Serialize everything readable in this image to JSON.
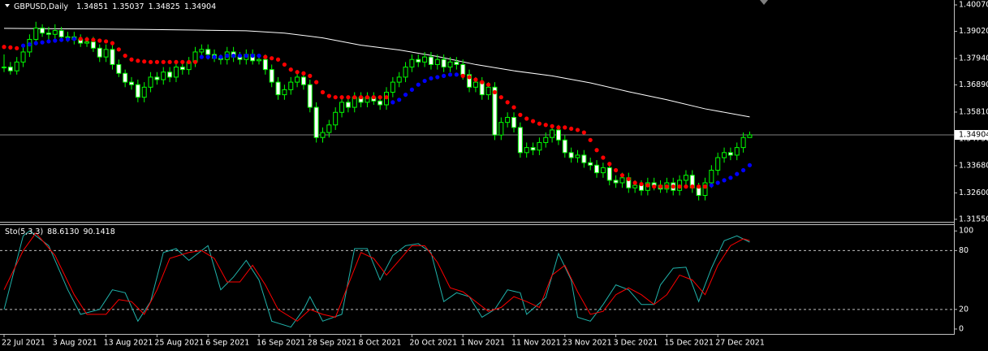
{
  "chart_data": [
    {
      "type": "candlestick",
      "title": "GBPUSD,Daily",
      "ohlc_labels": [
        "1.34851",
        "1.35037",
        "1.34825",
        "1.34904"
      ],
      "color": "#00ff00",
      "categories": [
        "22 Jul 2021",
        null,
        null,
        null,
        null,
        null,
        null,
        null,
        "3 Aug 2021",
        null,
        null,
        null,
        null,
        null,
        null,
        null,
        "13 Aug 2021",
        null,
        null,
        null,
        null,
        null,
        null,
        null,
        "25 Aug 2021",
        null,
        null,
        null,
        null,
        null,
        null,
        null,
        "6 Sep 2021",
        null,
        null,
        null,
        null,
        null,
        null,
        null,
        "16 Sep 2021",
        null,
        null,
        null,
        null,
        null,
        null,
        null,
        "28 Sep 2021",
        null,
        null,
        null,
        null,
        null,
        null,
        null,
        "8 Oct 2021",
        null,
        null,
        null,
        null,
        null,
        null,
        null,
        "20 Oct 2021",
        null,
        null,
        null,
        null,
        null,
        null,
        null,
        "1 Nov 2021",
        null,
        null,
        null,
        null,
        null,
        null,
        null,
        "11 Nov 2021",
        null,
        null,
        null,
        null,
        null,
        null,
        null,
        "23 Nov 2021",
        null,
        null,
        null,
        null,
        null,
        null,
        null,
        "3 Dec 2021",
        null,
        null,
        null,
        null,
        null,
        null,
        null,
        "15 Dec 2021",
        null,
        null,
        null,
        null,
        null,
        null,
        null,
        "27 Dec 2021",
        null,
        null,
        null,
        null,
        null
      ],
      "close": [
        1.376,
        1.3745,
        1.378,
        1.382,
        1.387,
        1.3915,
        1.3895,
        1.389,
        1.3905,
        1.388,
        1.388,
        1.387,
        1.3855,
        1.386,
        1.3835,
        1.38,
        1.383,
        1.377,
        1.3735,
        1.37,
        1.369,
        1.364,
        1.368,
        1.372,
        1.371,
        1.374,
        1.372,
        1.376,
        1.375,
        1.378,
        1.382,
        1.383,
        1.381,
        1.3795,
        1.379,
        1.382,
        1.38,
        1.379,
        1.381,
        1.3785,
        1.379,
        1.375,
        1.37,
        1.365,
        1.367,
        1.37,
        1.372,
        1.369,
        1.36,
        1.348,
        1.35,
        1.353,
        1.358,
        1.362,
        1.36,
        1.364,
        1.362,
        1.364,
        1.3625,
        1.361,
        1.366,
        1.37,
        1.372,
        1.376,
        1.379,
        1.378,
        1.38,
        1.377,
        1.379,
        1.376,
        1.378,
        1.377,
        1.373,
        1.368,
        1.37,
        1.365,
        1.368,
        1.349,
        1.354,
        1.356,
        1.352,
        1.342,
        1.344,
        1.343,
        1.346,
        1.348,
        1.351,
        1.347,
        1.342,
        1.34,
        1.341,
        1.338,
        1.337,
        1.334,
        1.336,
        1.331,
        1.33,
        1.332,
        1.328,
        1.329,
        1.327,
        1.33,
        1.329,
        1.3275,
        1.33,
        1.327,
        1.331,
        1.333,
        1.328,
        1.325,
        1.33,
        1.335,
        1.34,
        1.342,
        1.341,
        1.344,
        1.348,
        1.34904
      ],
      "high": [
        1.381,
        1.378,
        1.38,
        1.384,
        1.389,
        1.394,
        1.393,
        1.392,
        1.393,
        1.392,
        1.39,
        1.39,
        1.389,
        1.388,
        1.388,
        1.385,
        1.385,
        1.385,
        1.379,
        1.375,
        1.372,
        1.371,
        1.37,
        1.374,
        1.374,
        1.376,
        1.376,
        1.378,
        1.378,
        1.38,
        1.384,
        1.385,
        1.385,
        1.383,
        1.381,
        1.384,
        1.384,
        1.382,
        1.383,
        1.383,
        1.381,
        1.381,
        1.377,
        1.372,
        1.369,
        1.372,
        1.374,
        1.374,
        1.371,
        1.362,
        1.352,
        1.355,
        1.36,
        1.364,
        1.364,
        1.366,
        1.366,
        1.366,
        1.366,
        1.364,
        1.368,
        1.372,
        1.374,
        1.378,
        1.381,
        1.381,
        1.382,
        1.382,
        1.381,
        1.381,
        1.38,
        1.38,
        1.379,
        1.375,
        1.372,
        1.372,
        1.37,
        1.37,
        1.356,
        1.358,
        1.358,
        1.354,
        1.346,
        1.346,
        1.348,
        1.35,
        1.353,
        1.353,
        1.349,
        1.344,
        1.343,
        1.343,
        1.34,
        1.339,
        1.338,
        1.338,
        1.333,
        1.334,
        1.334,
        1.331,
        1.331,
        1.332,
        1.332,
        1.331,
        1.332,
        1.332,
        1.333,
        1.335,
        1.335,
        1.33,
        1.332,
        1.337,
        1.342,
        1.344,
        1.344,
        1.346,
        1.35,
        1.35037
      ],
      "low": [
        1.374,
        1.373,
        1.373,
        1.376,
        1.38,
        1.385,
        1.388,
        1.387,
        1.387,
        1.386,
        1.386,
        1.385,
        1.384,
        1.384,
        1.382,
        1.378,
        1.378,
        1.375,
        1.372,
        1.368,
        1.367,
        1.362,
        1.362,
        1.366,
        1.369,
        1.369,
        1.37,
        1.37,
        1.373,
        1.373,
        1.376,
        1.38,
        1.379,
        1.378,
        1.377,
        1.377,
        1.378,
        1.377,
        1.377,
        1.377,
        1.377,
        1.373,
        1.368,
        1.363,
        1.363,
        1.365,
        1.368,
        1.367,
        1.358,
        1.346,
        1.346,
        1.348,
        1.351,
        1.356,
        1.358,
        1.358,
        1.36,
        1.36,
        1.361,
        1.359,
        1.359,
        1.364,
        1.368,
        1.37,
        1.374,
        1.376,
        1.376,
        1.375,
        1.375,
        1.374,
        1.374,
        1.375,
        1.371,
        1.366,
        1.366,
        1.363,
        1.363,
        1.347,
        1.347,
        1.352,
        1.35,
        1.34,
        1.34,
        1.341,
        1.341,
        1.344,
        1.346,
        1.345,
        1.34,
        1.338,
        1.338,
        1.336,
        1.335,
        1.332,
        1.332,
        1.329,
        1.328,
        1.328,
        1.326,
        1.326,
        1.325,
        1.325,
        1.327,
        1.326,
        1.326,
        1.325,
        1.325,
        1.329,
        1.326,
        1.323,
        1.323,
        1.328,
        1.333,
        1.338,
        1.339,
        1.339,
        1.342,
        1.34825
      ],
      "ma": {
        "color": "#ffffff",
        "x": [
          0,
          10,
          21,
          30,
          38,
          44,
          50,
          56,
          62,
          68,
          74,
          80,
          86,
          92,
          98,
          104,
          110,
          117
        ],
        "values": [
          1.3914,
          1.3912,
          1.391,
          1.3907,
          1.3904,
          1.3895,
          1.3876,
          1.3847,
          1.3828,
          1.3802,
          1.377,
          1.3745,
          1.3725,
          1.3697,
          1.3662,
          1.363,
          1.3594,
          1.3562
        ]
      },
      "trail": [
        {
          "color": "#ff0000",
          "values": [
            1.384,
            1.3838,
            1.3835,
            null,
            null,
            null,
            null,
            null,
            null,
            null,
            null,
            null,
            1.3872,
            1.387,
            1.3868,
            1.3865,
            1.3862,
            1.3855,
            1.383,
            1.3805,
            1.379,
            1.3785,
            1.3782,
            1.378,
            1.378,
            1.378,
            1.378,
            1.378,
            1.378,
            1.378,
            1.378,
            null,
            null,
            null,
            null,
            null,
            null,
            null,
            null,
            null,
            null,
            1.38,
            1.3795,
            1.379,
            1.377,
            1.375,
            1.374,
            1.3735,
            1.3725,
            1.37,
            1.366,
            1.3645,
            1.364,
            1.364,
            1.364,
            1.364,
            1.364,
            1.364,
            1.364,
            1.364,
            1.364,
            null,
            null,
            null,
            null,
            null,
            null,
            null,
            null,
            null,
            null,
            null,
            1.3725,
            1.372,
            1.371,
            1.37,
            1.369,
            1.366,
            1.364,
            1.362,
            1.36,
            1.357,
            1.3555,
            1.3545,
            1.3535,
            1.353,
            1.3525,
            1.352,
            1.352,
            1.3515,
            1.351,
            1.35,
            1.347,
            1.343,
            1.34,
            1.3375,
            1.335,
            1.333,
            1.3315,
            1.33,
            1.3295,
            1.329,
            1.3285,
            1.3285,
            1.3285,
            1.3285,
            1.3285,
            1.3285,
            1.3285,
            1.3285,
            1.3285,
            null,
            null,
            null,
            null,
            null,
            null,
            null
          ]
        },
        {
          "color": "#0000ff",
          "values": [
            null,
            null,
            null,
            1.3845,
            1.385,
            1.3855,
            1.3858,
            1.3862,
            1.3865,
            1.3868,
            1.387,
            1.3872,
            null,
            null,
            null,
            null,
            null,
            null,
            null,
            null,
            null,
            null,
            null,
            null,
            null,
            null,
            null,
            null,
            null,
            null,
            null,
            1.38,
            1.38,
            1.38,
            1.38,
            1.3805,
            1.3805,
            1.3805,
            1.3805,
            1.3805,
            1.3805,
            null,
            null,
            null,
            null,
            null,
            null,
            null,
            null,
            null,
            null,
            null,
            null,
            null,
            null,
            null,
            null,
            null,
            null,
            null,
            null,
            1.362,
            1.363,
            1.365,
            1.367,
            1.369,
            1.3705,
            1.3715,
            1.372,
            1.3725,
            1.373,
            1.373,
            null,
            null,
            null,
            null,
            null,
            null,
            null,
            null,
            null,
            null,
            null,
            null,
            null,
            null,
            null,
            null,
            null,
            null,
            null,
            null,
            null,
            null,
            null,
            null,
            null,
            null,
            null,
            null,
            null,
            null,
            null,
            null,
            null,
            null,
            null,
            null,
            null,
            null,
            null,
            1.329,
            1.33,
            1.331,
            1.332,
            1.3335,
            1.335,
            1.337
          ]
        }
      ],
      "price_line": {
        "value": 1.34904,
        "label": "1.34904"
      },
      "ylim": [
        1.3145,
        1.402
      ],
      "yticks": [
        {
          "value": 1.4007,
          "label": "1.40070"
        },
        {
          "value": 1.3902,
          "label": "1.39020"
        },
        {
          "value": 1.3794,
          "label": "1.37940"
        },
        {
          "value": 1.3689,
          "label": "1.36890"
        },
        {
          "value": 1.3581,
          "label": "1.35810"
        },
        {
          "value": 1.3475,
          "label": "1.34750"
        },
        {
          "value": 1.3368,
          "label": "1.33680"
        },
        {
          "value": 1.326,
          "label": "1.32600"
        },
        {
          "value": 1.3155,
          "label": "1.31550"
        }
      ]
    },
    {
      "type": "line",
      "title": "Sto(5,3,3)",
      "series": [
        {
          "color": "#20b2aa",
          "value_label": "88.6130",
          "x": [
            0,
            3,
            4,
            7,
            10,
            12,
            15,
            17,
            19,
            21,
            23,
            25,
            27,
            29,
            32,
            34,
            36,
            38,
            40,
            42,
            45,
            47,
            48,
            50,
            53,
            55,
            57,
            59,
            61,
            63,
            65,
            67,
            69,
            71,
            73,
            75,
            77,
            79,
            81,
            82,
            85,
            87,
            89,
            90,
            92,
            94,
            96,
            98,
            100,
            102,
            103,
            105,
            107,
            109,
            111,
            113,
            115,
            117
          ],
          "values": [
            20,
            95,
            100,
            85,
            40,
            15,
            20,
            40,
            37,
            8,
            28,
            78,
            82,
            70,
            85,
            40,
            53,
            70,
            50,
            8,
            2,
            20,
            33,
            8,
            15,
            82,
            82,
            50,
            75,
            85,
            87,
            78,
            28,
            37,
            33,
            12,
            20,
            40,
            37,
            15,
            32,
            77,
            50,
            12,
            8,
            25,
            45,
            40,
            25,
            25,
            45,
            62,
            63,
            28,
            62,
            90,
            95,
            88.613
          ]
        },
        {
          "color": "#ff0000",
          "value_label": "90.1418",
          "x": [
            0,
            3,
            5,
            8,
            11,
            13,
            16,
            18,
            20,
            22,
            24,
            26,
            29,
            31,
            33,
            35,
            37,
            39,
            41,
            43,
            46,
            48,
            50,
            52,
            54,
            56,
            58,
            60,
            62,
            64,
            66,
            68,
            70,
            72,
            74,
            76,
            78,
            80,
            82,
            84,
            86,
            88,
            90,
            92,
            94,
            96,
            98,
            100,
            102,
            104,
            106,
            108,
            110,
            112,
            114,
            116,
            117
          ],
          "values": [
            40,
            80,
            98,
            75,
            35,
            15,
            15,
            30,
            28,
            15,
            40,
            72,
            78,
            80,
            72,
            48,
            48,
            65,
            45,
            20,
            8,
            20,
            15,
            12,
            45,
            78,
            72,
            55,
            70,
            85,
            85,
            68,
            42,
            38,
            28,
            18,
            22,
            33,
            28,
            22,
            55,
            65,
            38,
            15,
            18,
            35,
            42,
            35,
            25,
            35,
            55,
            50,
            35,
            65,
            85,
            92,
            90.1418
          ]
        }
      ],
      "levels": [
        20,
        80
      ],
      "ylim": [
        -5,
        106
      ],
      "yticks": [
        100,
        80,
        20,
        0
      ]
    }
  ]
}
